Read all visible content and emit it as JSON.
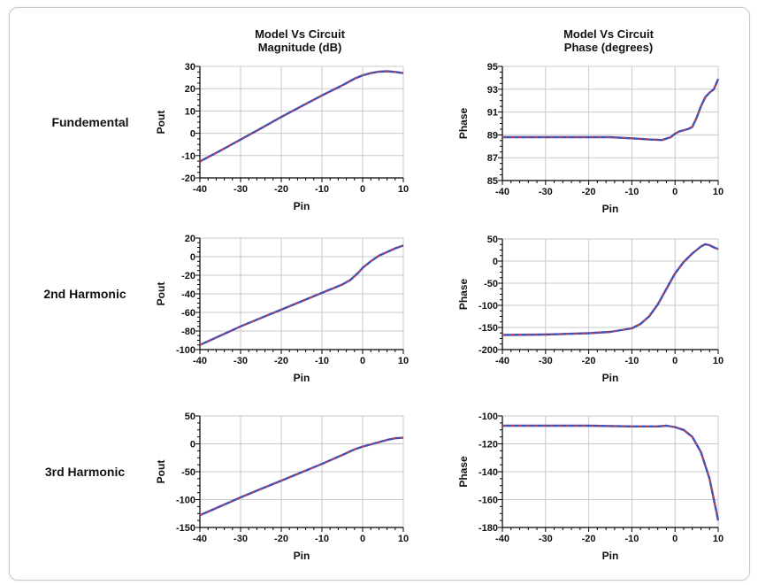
{
  "column_titles": [
    {
      "line1": "Model Vs Circuit",
      "line2": "Magnitude (dB)"
    },
    {
      "line1": "Model Vs Circuit",
      "line2": "Phase (degrees)"
    }
  ],
  "row_labels": [
    "Fundemental",
    "2nd Harmonic",
    "3rd Harmonic"
  ],
  "colors": {
    "model": "#3a4fb8",
    "circuit": "#d83a3a",
    "grid": "#c8c8c8",
    "frame_border": "#c8c8c8"
  },
  "chart_data": [
    {
      "type": "line",
      "row": "Fundemental",
      "column": "Magnitude (dB)",
      "xlabel": "Pin",
      "ylabel": "Pout",
      "xlim": [
        -40,
        10
      ],
      "ylim": [
        -20,
        30
      ],
      "xticks": [
        -40,
        -30,
        -20,
        -10,
        0,
        10
      ],
      "yticks": [
        -20,
        -10,
        0,
        10,
        20,
        30
      ],
      "grid": true,
      "x": [
        -40,
        -35,
        -30,
        -25,
        -20,
        -15,
        -10,
        -5,
        -2,
        0,
        2,
        4,
        6,
        8,
        10
      ],
      "series": [
        {
          "values": [
            -12.6,
            -7.8,
            -2.8,
            2.2,
            7.3,
            12.2,
            17.0,
            21.5,
            24.5,
            26.0,
            27.0,
            27.6,
            27.8,
            27.5,
            27.0
          ]
        }
      ]
    },
    {
      "type": "line",
      "row": "Fundemental",
      "column": "Phase (degrees)",
      "xlabel": "Pin",
      "ylabel": "Phase",
      "xlim": [
        -40,
        10
      ],
      "ylim": [
        85,
        95
      ],
      "xticks": [
        -40,
        -30,
        -20,
        -10,
        0,
        10
      ],
      "yticks": [
        85,
        87,
        89,
        91,
        93,
        95
      ],
      "grid": true,
      "x": [
        -40,
        -30,
        -20,
        -15,
        -10,
        -6,
        -3,
        -1,
        0,
        1,
        3,
        4,
        5,
        6,
        7,
        8,
        9,
        10
      ],
      "series": [
        {
          "values": [
            88.8,
            88.8,
            88.8,
            88.8,
            88.7,
            88.6,
            88.55,
            88.8,
            89.1,
            89.3,
            89.5,
            89.7,
            90.5,
            91.5,
            92.3,
            92.7,
            93.0,
            93.9
          ]
        }
      ]
    },
    {
      "type": "line",
      "row": "2nd Harmonic",
      "column": "Magnitude (dB)",
      "xlabel": "Pin",
      "ylabel": "Pout",
      "xlim": [
        -40,
        10
      ],
      "ylim": [
        -100,
        20
      ],
      "xticks": [
        -40,
        -30,
        -20,
        -10,
        0,
        10
      ],
      "yticks": [
        -100,
        -80,
        -60,
        -40,
        -20,
        0,
        20
      ],
      "grid": true,
      "x": [
        -40,
        -35,
        -30,
        -25,
        -20,
        -15,
        -10,
        -5,
        -3,
        -1,
        0,
        2,
        4,
        6,
        8,
        10
      ],
      "series": [
        {
          "values": [
            -95,
            -85,
            -75,
            -66,
            -57,
            -48,
            -39,
            -30,
            -25,
            -17,
            -12,
            -5,
            1,
            5,
            9,
            12
          ]
        }
      ]
    },
    {
      "type": "line",
      "row": "2nd Harmonic",
      "column": "Phase (degrees)",
      "xlabel": "Pin",
      "ylabel": "Phase",
      "xlim": [
        -40,
        10
      ],
      "ylim": [
        -200,
        50
      ],
      "xticks": [
        -40,
        -30,
        -20,
        -10,
        0,
        10
      ],
      "yticks": [
        -200,
        -150,
        -100,
        -50,
        0,
        50
      ],
      "grid": true,
      "x": [
        -40,
        -30,
        -20,
        -15,
        -10,
        -8,
        -6,
        -4,
        -2,
        0,
        2,
        4,
        6,
        7,
        8,
        9,
        10
      ],
      "series": [
        {
          "values": [
            -167,
            -166,
            -163,
            -160,
            -152,
            -142,
            -125,
            -98,
            -63,
            -28,
            -2,
            17,
            33,
            38,
            36,
            31,
            27
          ]
        }
      ]
    },
    {
      "type": "line",
      "row": "3rd Harmonic",
      "column": "Magnitude (dB)",
      "xlabel": "Pin",
      "ylabel": "Pout",
      "xlim": [
        -40,
        10
      ],
      "ylim": [
        -150,
        50
      ],
      "xticks": [
        -40,
        -30,
        -20,
        -10,
        0,
        10
      ],
      "yticks": [
        -150,
        -100,
        -50,
        0,
        50
      ],
      "grid": true,
      "x": [
        -40,
        -35,
        -30,
        -25,
        -20,
        -15,
        -10,
        -5,
        -2,
        0,
        2,
        4,
        6,
        8,
        10
      ],
      "series": [
        {
          "values": [
            -128,
            -112,
            -96,
            -81,
            -66,
            -51,
            -36,
            -20,
            -10,
            -5,
            -1,
            3,
            7,
            10,
            11
          ]
        }
      ]
    },
    {
      "type": "line",
      "row": "3rd Harmonic",
      "column": "Phase (degrees)",
      "xlabel": "Pin",
      "ylabel": "Phase",
      "xlim": [
        -40,
        10
      ],
      "ylim": [
        -180,
        -100
      ],
      "xticks": [
        -40,
        -30,
        -20,
        -10,
        0,
        10
      ],
      "yticks": [
        -180,
        -160,
        -140,
        -120,
        -100
      ],
      "grid": true,
      "x": [
        -40,
        -30,
        -20,
        -10,
        -4,
        -2,
        0,
        2,
        4,
        6,
        8,
        9,
        10
      ],
      "series": [
        {
          "values": [
            -107,
            -107,
            -107,
            -107.5,
            -107.5,
            -107,
            -108,
            -110,
            -115,
            -126,
            -145,
            -160,
            -175
          ]
        }
      ]
    }
  ]
}
